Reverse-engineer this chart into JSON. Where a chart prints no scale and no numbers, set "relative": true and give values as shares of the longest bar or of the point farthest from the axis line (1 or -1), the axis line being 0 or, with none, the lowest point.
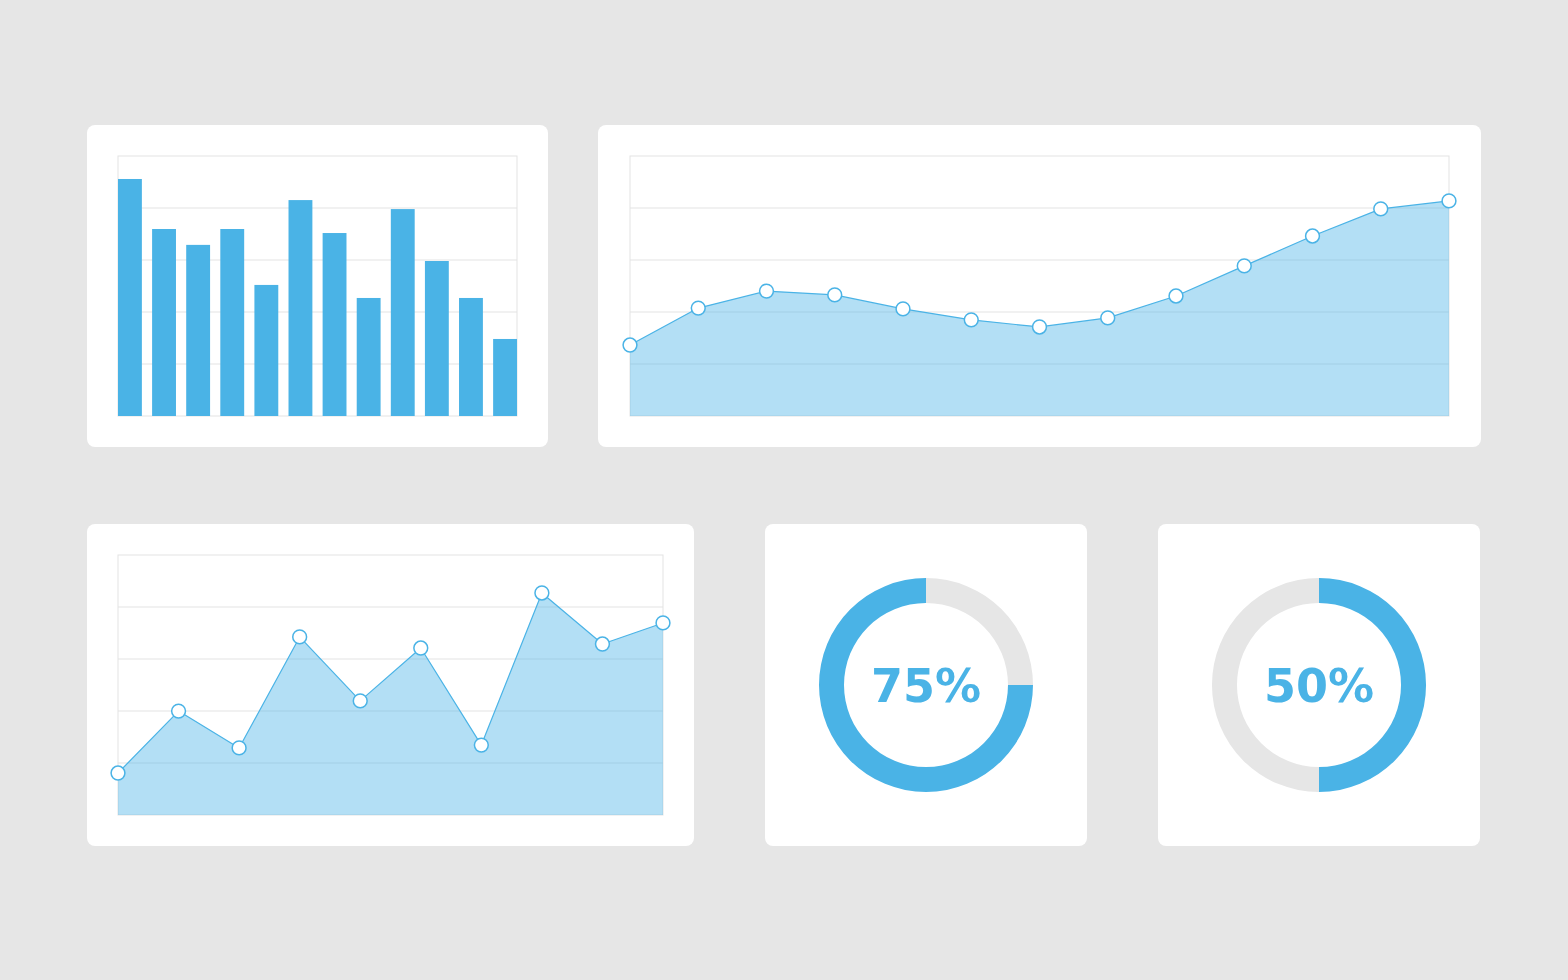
{
  "chart_data": [
    {
      "type": "bar",
      "relative": true,
      "grid": "y",
      "color": "#4ab3e6",
      "categories": [
        null,
        null,
        null,
        null,
        null,
        null,
        null,
        null,
        null,
        null,
        null,
        null
      ],
      "values": [
        1,
        0.789,
        0.722,
        0.789,
        0.553,
        0.911,
        0.772,
        0.498,
        0.873,
        0.654,
        0.498,
        0.325
      ]
    },
    {
      "type": "area",
      "relative": true,
      "grid": "y",
      "marker": "circle",
      "categories": [
        null,
        null,
        null,
        null,
        null,
        null,
        null,
        null,
        null,
        null,
        null,
        null,
        null
      ],
      "series": [
        {
          "color": "#4ab3e6",
          "values": [
            0.33,
            0.502,
            0.581,
            0.563,
            0.498,
            0.447,
            0.414,
            0.456,
            0.558,
            0.698,
            0.837,
            0.963,
            1
          ]
        }
      ]
    },
    {
      "type": "area",
      "relative": true,
      "grid": "y",
      "marker": "circle",
      "categories": [
        null,
        null,
        null,
        null,
        null,
        null,
        null,
        null,
        null,
        null
      ],
      "series": [
        {
          "color": "#4ab3e6",
          "values": [
            0.189,
            0.468,
            0.302,
            0.802,
            0.514,
            0.752,
            0.315,
            1,
            0.77,
            0.865
          ]
        }
      ]
    },
    {
      "type": "donut",
      "categories": [
        null,
        null
      ],
      "values": [
        25,
        75
      ],
      "colors": [
        "#e6e6e6",
        "#4ab3e6"
      ],
      "value_labels": [
        null,
        "75%"
      ]
    },
    {
      "type": "donut",
      "categories": [
        null,
        null
      ],
      "values": [
        50,
        50
      ],
      "colors": [
        "#4ab3e6",
        "#e6e6e6"
      ],
      "value_labels": [
        "50%",
        null
      ]
    }
  ]
}
